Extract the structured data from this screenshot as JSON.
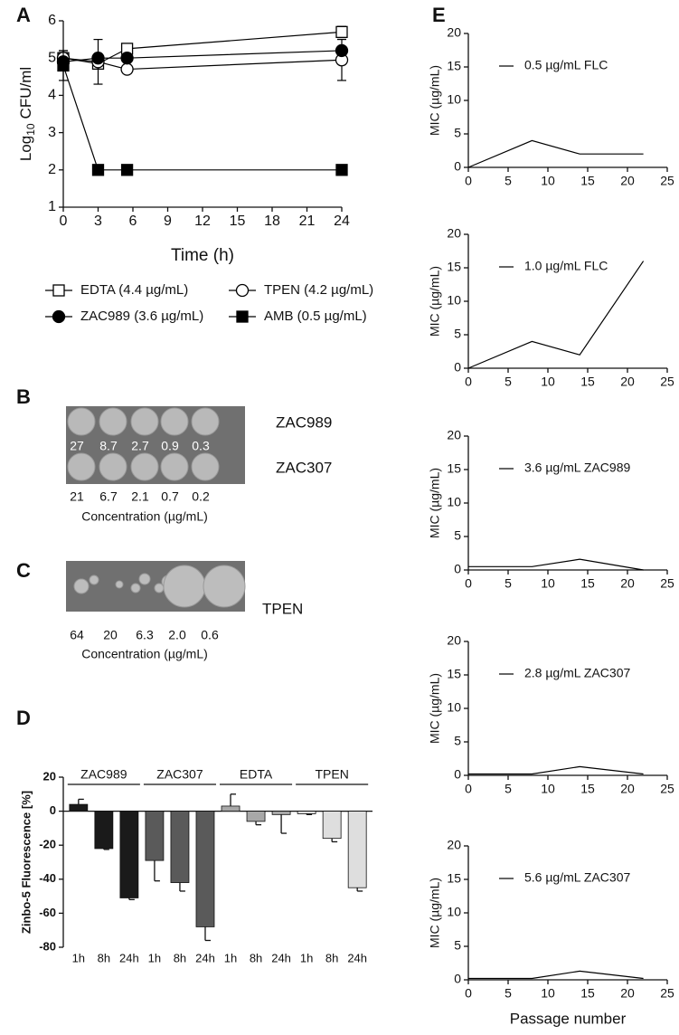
{
  "chart_data": [
    {
      "type": "line",
      "panel": "A",
      "x": [
        0,
        3,
        5.5,
        24
      ],
      "xlim": [
        0,
        24
      ],
      "xticks": [
        0,
        3,
        6,
        9,
        12,
        15,
        18,
        21,
        24
      ],
      "ylim": [
        1,
        6
      ],
      "yticks": [
        1,
        2,
        3,
        4,
        5,
        6
      ],
      "x_label": "Time (h)",
      "y_label": [
        "Log",
        "10",
        "CFU/ml"
      ],
      "legend": "bottom",
      "series": [
        {
          "name": "EDTA (4.4 µg/mL)",
          "color": "#000000",
          "marker": "square-open",
          "values": [
            5.0,
            4.85,
            5.25,
            5.7
          ],
          "errors": [
            0.15,
            0.1,
            0.05,
            0.15
          ]
        },
        {
          "name": "TPEN (4.2 µg/mL)",
          "color": "#000000",
          "marker": "circle-open",
          "values": [
            5.0,
            4.9,
            4.7,
            4.95
          ],
          "errors": [
            0.2,
            0.6,
            0.1,
            0.55
          ]
        },
        {
          "name": "ZAC989 (3.6 µg/mL)",
          "color": "#000000",
          "marker": "circle",
          "values": [
            4.9,
            5.0,
            5.0,
            5.2
          ],
          "errors": [
            0.1,
            0.05,
            0.05,
            0.1
          ]
        },
        {
          "name": "AMB (0.5 µg/mL)",
          "color": "#000000",
          "marker": "square",
          "values": [
            4.8,
            2.0,
            2.0,
            2.0
          ],
          "errors": [
            0.4,
            0.05,
            0.05,
            0.05
          ]
        }
      ]
    },
    {
      "type": "bar",
      "panel": "D",
      "categories": [
        "1h",
        "8h",
        "24h"
      ],
      "ylim": [
        -80,
        20
      ],
      "yticks": [
        -80,
        -60,
        -40,
        -20,
        0,
        20
      ],
      "y_label": "Zinbo-5 Fluorescence [%]",
      "series": [
        {
          "name": "ZAC989",
          "color": "#1a1a1a",
          "values": [
            4,
            -22,
            -51
          ],
          "errors": [
            3,
            0.5,
            1
          ]
        },
        {
          "name": "ZAC307",
          "color": "#5a5a5a",
          "values": [
            -29,
            -42,
            -68
          ],
          "errors": [
            12,
            5,
            8
          ]
        },
        {
          "name": "EDTA",
          "color": "#a8a8a8",
          "values": [
            3,
            -6,
            -2
          ],
          "errors": [
            7,
            2,
            11
          ]
        },
        {
          "name": "TPEN",
          "color": "#dedede",
          "values": [
            -1.5,
            -16,
            -45
          ],
          "errors": [
            0.5,
            2,
            2
          ]
        }
      ]
    },
    {
      "type": "line",
      "panel": "E",
      "x": [
        0,
        8,
        14,
        22
      ],
      "xlim": [
        0,
        25
      ],
      "xticks": [
        0,
        5,
        10,
        15,
        20,
        25
      ],
      "ylim": [
        0,
        20
      ],
      "yticks": [
        0,
        5,
        10,
        15,
        20
      ],
      "y_label": "MIC (µg/mL)",
      "legend": "top-left",
      "series": [
        {
          "name": "0.5 µg/mL FLC",
          "color": "#000000",
          "values": [
            0,
            4,
            2,
            2
          ]
        }
      ]
    },
    {
      "type": "line",
      "x": [
        0,
        8,
        14,
        22
      ],
      "xlim": [
        0,
        25
      ],
      "xticks": [
        0,
        5,
        10,
        15,
        20,
        25
      ],
      "ylim": [
        0,
        20
      ],
      "yticks": [
        0,
        5,
        10,
        15,
        20
      ],
      "y_label": "MIC (µg/mL)",
      "legend": "top-left",
      "series": [
        {
          "name": "1.0 µg/mL FLC",
          "color": "#000000",
          "values": [
            0,
            4,
            2,
            16
          ]
        }
      ]
    },
    {
      "type": "line",
      "x": [
        0,
        8,
        14,
        22
      ],
      "xlim": [
        0,
        25
      ],
      "xticks": [
        0,
        5,
        10,
        15,
        20,
        25
      ],
      "ylim": [
        0,
        20
      ],
      "yticks": [
        0,
        5,
        10,
        15,
        20
      ],
      "y_label": "MIC (µg/mL)",
      "legend": "top-left",
      "series": [
        {
          "name": "3.6 µg/mL ZAC989",
          "color": "#000000",
          "values": [
            0.5,
            0.5,
            1.6,
            0
          ]
        }
      ]
    },
    {
      "type": "line",
      "x": [
        0,
        8,
        14,
        22
      ],
      "xlim": [
        0,
        25
      ],
      "xticks": [
        0,
        5,
        10,
        15,
        20,
        25
      ],
      "ylim": [
        0,
        20
      ],
      "yticks": [
        0,
        5,
        10,
        15,
        20
      ],
      "y_label": "MIC (µg/mL)",
      "legend": "top-left",
      "series": [
        {
          "name": "2.8 µg/mL ZAC307",
          "color": "#000000",
          "values": [
            0.2,
            0.2,
            1.3,
            0.2
          ]
        }
      ]
    },
    {
      "type": "line",
      "x": [
        0,
        8,
        14,
        22
      ],
      "xlim": [
        0,
        25
      ],
      "xticks": [
        0,
        5,
        10,
        15,
        20,
        25
      ],
      "ylim": [
        0,
        20
      ],
      "yticks": [
        0,
        5,
        10,
        15,
        20
      ],
      "y_label": "MIC (µg/mL)",
      "x_label": "Passage number",
      "legend": "top-left",
      "series": [
        {
          "name": "5.6 µg/mL ZAC307",
          "color": "#000000",
          "values": [
            0.2,
            0.2,
            1.3,
            0.2
          ]
        }
      ]
    }
  ],
  "plates": [
    {
      "panel": "B",
      "rows": [
        {
          "label": "ZAC989",
          "concentrations": [
            "27",
            "8.7",
            "2.7",
            "0.9",
            "0.3"
          ]
        },
        {
          "label": "ZAC307",
          "concentrations": [
            "21",
            "6.7",
            "2.1",
            "0.7",
            "0.2"
          ]
        }
      ],
      "x_label": "Concentration (µg/mL)"
    },
    {
      "panel": "C",
      "rows": [
        {
          "label": "TPEN",
          "concentrations": [
            "64",
            "20",
            "6.3",
            "2.0",
            "0.6"
          ]
        }
      ],
      "x_label": "Concentration (µg/mL)"
    }
  ]
}
